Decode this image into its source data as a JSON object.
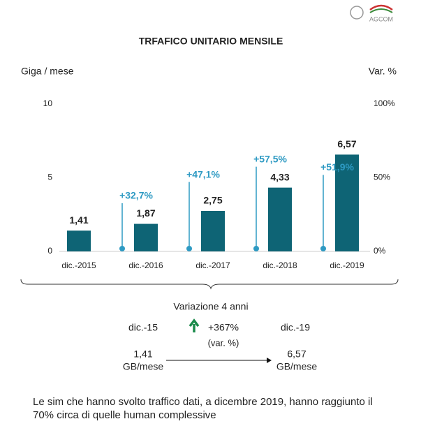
{
  "logo": "AGCOM",
  "chart_data": {
    "type": "bar",
    "title": "TRFAFICO UNITARIO MENSILE",
    "ylabel": "Giga / mese",
    "y2label": "Var. %",
    "categories": [
      "dic.-2015",
      "dic.-2016",
      "dic.-2017",
      "dic.-2018",
      "dic.-2019"
    ],
    "series": [
      {
        "values": [
          1.41,
          1.87,
          2.75,
          4.33,
          6.57
        ],
        "value_labels": [
          "1,41",
          "1,87",
          "2,75",
          "4,33",
          "6,57"
        ],
        "color": "#0e6475"
      },
      {
        "values": [
          null,
          32.7,
          47.1,
          57.5,
          51.9
        ],
        "value_labels": [
          null,
          "+32,7%",
          "+47,1%",
          "+57,5%",
          "+51,9%"
        ],
        "color": "#2e9ac3",
        "axis": "y2"
      }
    ],
    "ylim": [
      0,
      10
    ],
    "yticks": [
      0,
      5,
      10
    ],
    "y2lim": [
      0,
      100
    ],
    "y2ticks": [
      {
        "value": 0,
        "label": "0%"
      },
      {
        "value": 50,
        "label": "50%"
      },
      {
        "value": 100,
        "label": "100%"
      }
    ],
    "grid": false
  },
  "summary": {
    "title": "Variazione 4 anni",
    "from_label": "dic.-15",
    "to_label": "dic.-19",
    "change": "+367%",
    "change_unit": "(var. %)",
    "from_value": "1,41",
    "from_unit": "GB/mese",
    "to_value": "6,57",
    "to_unit": "GB/mese"
  },
  "note": [
    "Le sim che hanno svolto traffico dati, a dicembre 2019, hanno raggiunto il",
    "70% circa di quelle human complessive"
  ]
}
